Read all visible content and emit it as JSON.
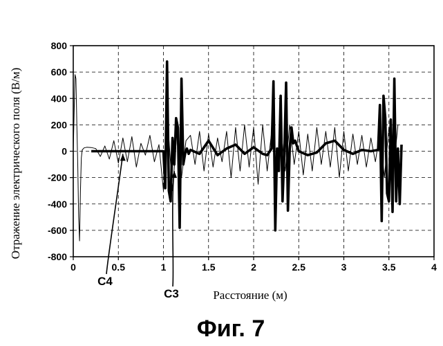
{
  "chart_data": {
    "type": "line",
    "xlabel": "Расстояние (м)",
    "ylabel": "Отражение электрического поля (В/м)",
    "caption": "Фиг. 7",
    "xlim": [
      0,
      4
    ],
    "ylim": [
      -800,
      800
    ],
    "x_ticks": [
      0,
      0.5,
      1,
      1.5,
      2,
      2.5,
      3,
      3.5,
      4
    ],
    "x_tick_labels": [
      "0",
      "0.5",
      "1",
      "1.5",
      "2",
      "2.5",
      "3",
      "3.5",
      "4"
    ],
    "y_ticks": [
      800,
      600,
      400,
      200,
      0,
      -200,
      -400,
      -600,
      -800
    ],
    "y_tick_labels": [
      "800",
      "600",
      "400",
      "200",
      "0",
      "-200",
      "-400",
      "-600",
      "-800"
    ],
    "grid": true,
    "grid_style": "dashed",
    "annotations": [
      {
        "text": "C4",
        "points_to_series": "C4",
        "target_x": 0.55,
        "target_y": -20
      },
      {
        "text": "C3",
        "points_to_series": "C3",
        "target_x": 1.12,
        "target_y": -150
      }
    ],
    "series": [
      {
        "name": "C4",
        "style": "thin",
        "color": "#000000",
        "x": [
          0,
          0.01,
          0.02,
          0.03,
          0.04,
          0.05,
          0.06,
          0.07,
          0.08,
          0.09,
          0.1,
          0.12,
          0.15,
          0.2,
          0.25,
          0.3,
          0.35,
          0.4,
          0.45,
          0.5,
          0.55,
          0.6,
          0.65,
          0.7,
          0.75,
          0.8,
          0.85,
          0.9,
          0.95,
          1.0,
          1.05,
          1.1,
          1.15,
          1.2,
          1.25,
          1.3,
          1.35,
          1.4,
          1.45,
          1.5,
          1.55,
          1.6,
          1.65,
          1.7,
          1.75,
          1.8,
          1.85,
          1.9,
          1.95,
          2.0,
          2.05,
          2.1,
          2.15,
          2.2,
          2.25,
          2.3,
          2.35,
          2.4,
          2.45,
          2.5,
          2.55,
          2.6,
          2.65,
          2.7,
          2.75,
          2.8,
          2.85,
          2.9,
          2.95,
          3.0,
          3.05,
          3.1,
          3.15,
          3.2,
          3.25,
          3.3,
          3.35,
          3.4,
          3.45,
          3.5,
          3.55,
          3.6
        ],
        "values": [
          0,
          300,
          580,
          550,
          200,
          -100,
          -500,
          -680,
          -300,
          -50,
          10,
          25,
          30,
          28,
          20,
          -40,
          40,
          -60,
          80,
          -90,
          100,
          -80,
          110,
          -120,
          60,
          -30,
          120,
          -80,
          50,
          -300,
          200,
          -300,
          150,
          -200,
          80,
          120,
          -100,
          150,
          -150,
          130,
          -120,
          100,
          -80,
          150,
          -200,
          180,
          -150,
          200,
          -120,
          180,
          -250,
          200,
          -150,
          150,
          -200,
          180,
          -150,
          200,
          -100,
          150,
          -180,
          130,
          -150,
          180,
          -100,
          150,
          -120,
          180,
          -200,
          150,
          -150,
          130,
          -100,
          120,
          -120,
          100,
          -80,
          150,
          -200,
          180,
          -150,
          200
        ]
      },
      {
        "name": "C3",
        "style": "thick",
        "color": "#000000",
        "x": [
          0.2,
          0.4,
          0.6,
          0.8,
          1.0,
          1.02,
          1.04,
          1.06,
          1.08,
          1.1,
          1.12,
          1.14,
          1.16,
          1.18,
          1.2,
          1.22,
          1.24,
          1.26,
          1.28,
          1.3,
          1.4,
          1.5,
          1.6,
          1.7,
          1.8,
          1.9,
          2.0,
          2.1,
          2.15,
          2.2,
          2.22,
          2.24,
          2.26,
          2.28,
          2.3,
          2.32,
          2.34,
          2.36,
          2.38,
          2.4,
          2.42,
          2.44,
          2.46,
          2.48,
          2.5,
          2.6,
          2.7,
          2.8,
          2.9,
          3.0,
          3.1,
          3.2,
          3.3,
          3.38,
          3.4,
          3.42,
          3.44,
          3.46,
          3.48,
          3.5,
          3.52,
          3.54,
          3.56,
          3.58,
          3.6,
          3.62,
          3.64
        ],
        "values": [
          0,
          0,
          0,
          0,
          0,
          -280,
          680,
          -300,
          -380,
          100,
          -100,
          250,
          180,
          -580,
          550,
          -100,
          -20,
          20,
          -20,
          10,
          -20,
          80,
          -30,
          20,
          50,
          -20,
          30,
          -20,
          -30,
          20,
          530,
          -600,
          20,
          -150,
          420,
          -380,
          -20,
          520,
          -450,
          20,
          180,
          60,
          80,
          40,
          0,
          -30,
          -10,
          60,
          80,
          10,
          -20,
          10,
          0,
          10,
          350,
          -530,
          420,
          250,
          -320,
          -380,
          240,
          -460,
          550,
          -380,
          20,
          -400,
          50
        ]
      }
    ]
  }
}
